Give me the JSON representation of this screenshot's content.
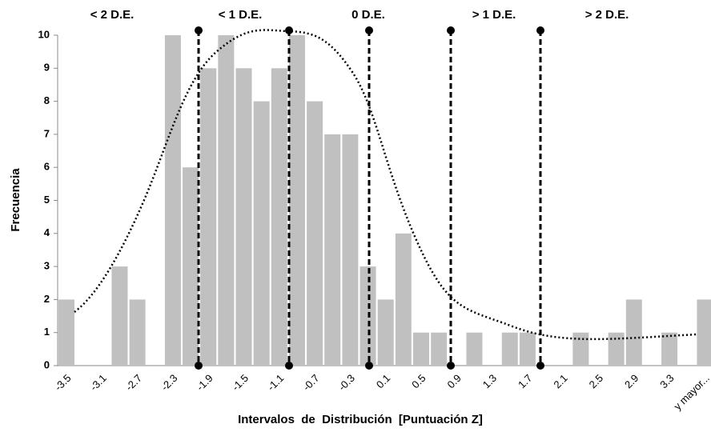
{
  "chart_data": {
    "type": "bar",
    "xlabel": "Intervalos  de  Distribución  [Puntuación Z]",
    "ylabel": "Frecuencia",
    "annotations": [
      "< 2 D.E.",
      "< 1 D.E.",
      "0 D.E.",
      "> 1 D.E.",
      "> 2 D.E."
    ],
    "categories": [
      "-3.5",
      null,
      "-3.1",
      null,
      "-2.7",
      null,
      "-2.3",
      null,
      "-1.9",
      null,
      "-1.5",
      null,
      "-1.1",
      null,
      "-0.7",
      null,
      "-0.3",
      null,
      "0.1",
      null,
      "0.5",
      null,
      "0.9",
      null,
      "1.3",
      null,
      "1.7",
      null,
      "2.1",
      null,
      "2.5",
      null,
      "2.9",
      null,
      "3.3",
      null,
      "y mayor..."
    ],
    "values": [
      2,
      0,
      0,
      3,
      2,
      0,
      10,
      6,
      9,
      10,
      9,
      8,
      9,
      10,
      8,
      7,
      7,
      3,
      2,
      4,
      1,
      1,
      0,
      1,
      0,
      1,
      1,
      0,
      0,
      1,
      0,
      1,
      2,
      0,
      1,
      0,
      2
    ],
    "color": "#c0c0c0",
    "ylim": [
      0,
      10
    ],
    "yticks": [
      0,
      1,
      2,
      3,
      4,
      5,
      6,
      7,
      8,
      9,
      10
    ]
  }
}
